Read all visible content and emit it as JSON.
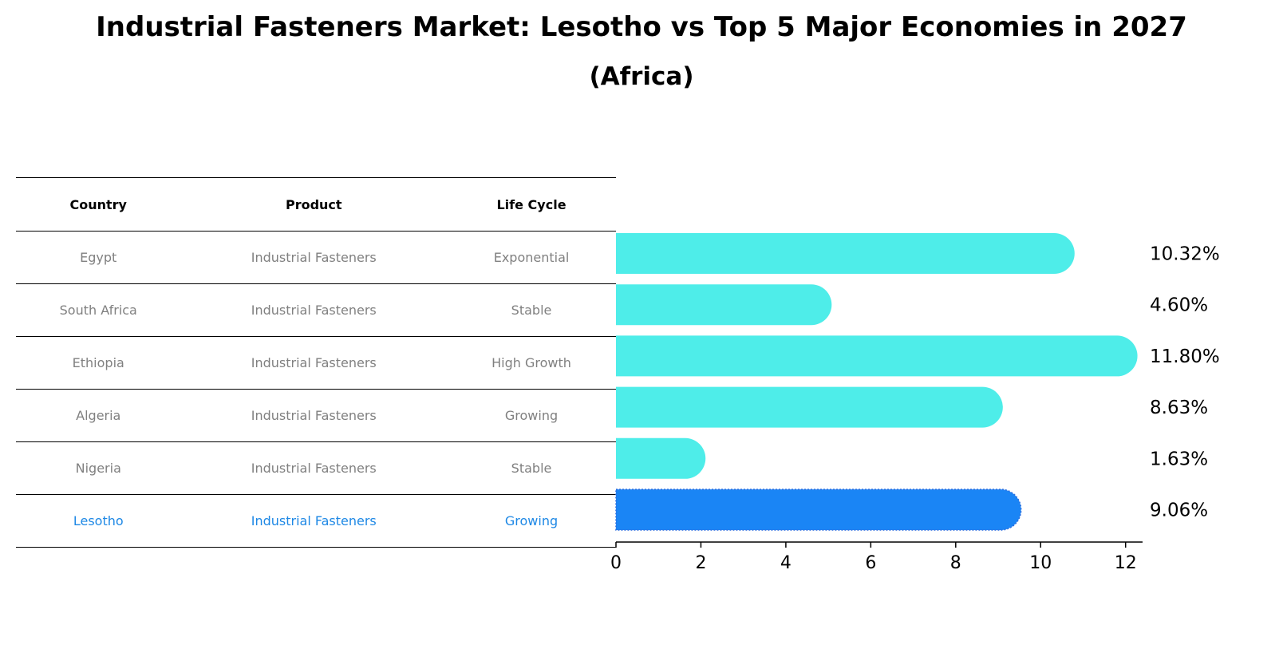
{
  "title": "Industrial Fasteners Market: Lesotho vs Top 5 Major Economies in 2027",
  "subtitle": "(Africa)",
  "table": {
    "headers": [
      "Country",
      "Product",
      "Life Cycle"
    ],
    "rows": [
      [
        "Egypt",
        "Industrial Fasteners",
        "Exponential"
      ],
      [
        "South Africa",
        "Industrial Fasteners",
        "Stable"
      ],
      [
        "Ethiopia",
        "Industrial Fasteners",
        "High Growth"
      ],
      [
        "Algeria",
        "Industrial Fasteners",
        "Growing"
      ],
      [
        "Nigeria",
        "Industrial Fasteners",
        "Stable"
      ],
      [
        "Lesotho",
        "Industrial Fasteners",
        "Growing"
      ]
    ]
  },
  "colors": {
    "bar": "#4eede9",
    "highlight": "#1a85f5",
    "row_text": "#808080",
    "highlight_text": "#1e88e5"
  },
  "chart_data": {
    "type": "bar",
    "orientation": "horizontal",
    "categories": [
      "Egypt",
      "South Africa",
      "Ethiopia",
      "Algeria",
      "Nigeria",
      "Lesotho"
    ],
    "values": [
      10.32,
      4.6,
      11.8,
      8.63,
      1.63,
      9.06
    ],
    "value_labels": [
      "10.32%",
      "4.60%",
      "11.80%",
      "8.63%",
      "1.63%",
      "9.06%"
    ],
    "highlight": "Lesotho",
    "xlim": [
      0,
      12.4
    ],
    "xticks": [
      0,
      2,
      4,
      6,
      8,
      10,
      12
    ],
    "xlabel": "",
    "ylabel": ""
  }
}
